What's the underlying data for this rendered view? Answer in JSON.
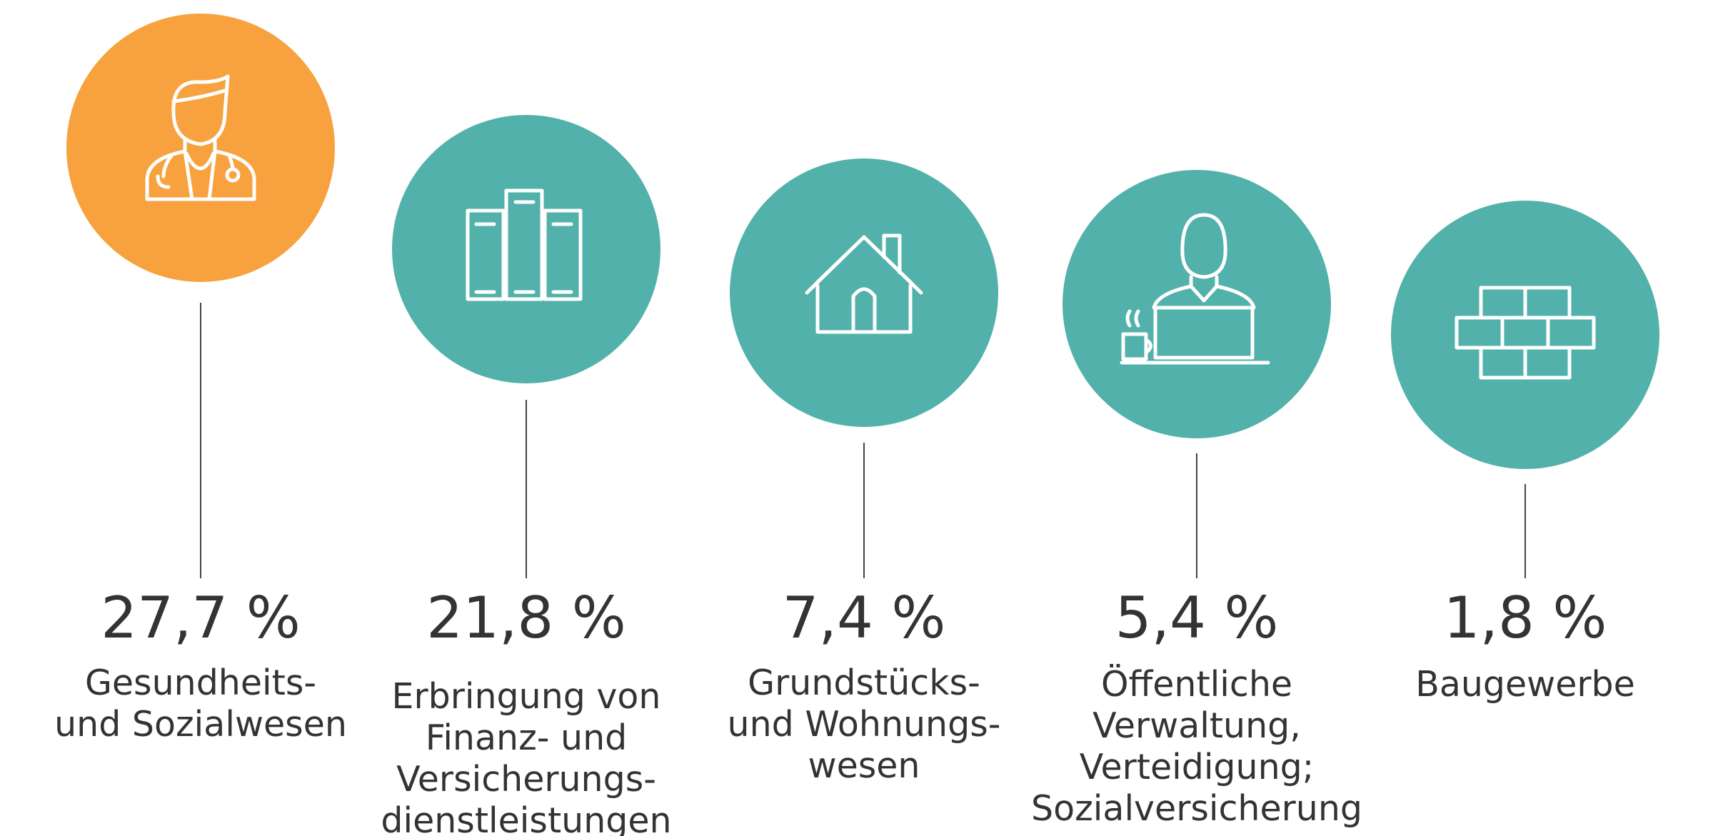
{
  "items": [
    {
      "value": "27,7 %",
      "label": [
        "Gesundheits-",
        "und Sozialwesen"
      ],
      "color": "#f7a23e"
    },
    {
      "value": "21,8 %",
      "label": [
        "Erbringung von",
        "Finanz- und",
        "Versicherungs-",
        "dienstleistungen"
      ],
      "color": "#52b1aa"
    },
    {
      "value": "7,4 %",
      "label": [
        "Grundstücks-",
        "und Wohnungs-",
        "wesen"
      ],
      "color": "#52b1aa"
    },
    {
      "value": "5,4 %",
      "label": [
        "Öffentliche",
        "Verwaltung,",
        "Verteidigung;",
        "Sozialversicherung"
      ],
      "color": "#52b1aa"
    },
    {
      "value": "1,8 %",
      "label": [
        "Baugewerbe"
      ],
      "color": "#52b1aa"
    }
  ]
}
